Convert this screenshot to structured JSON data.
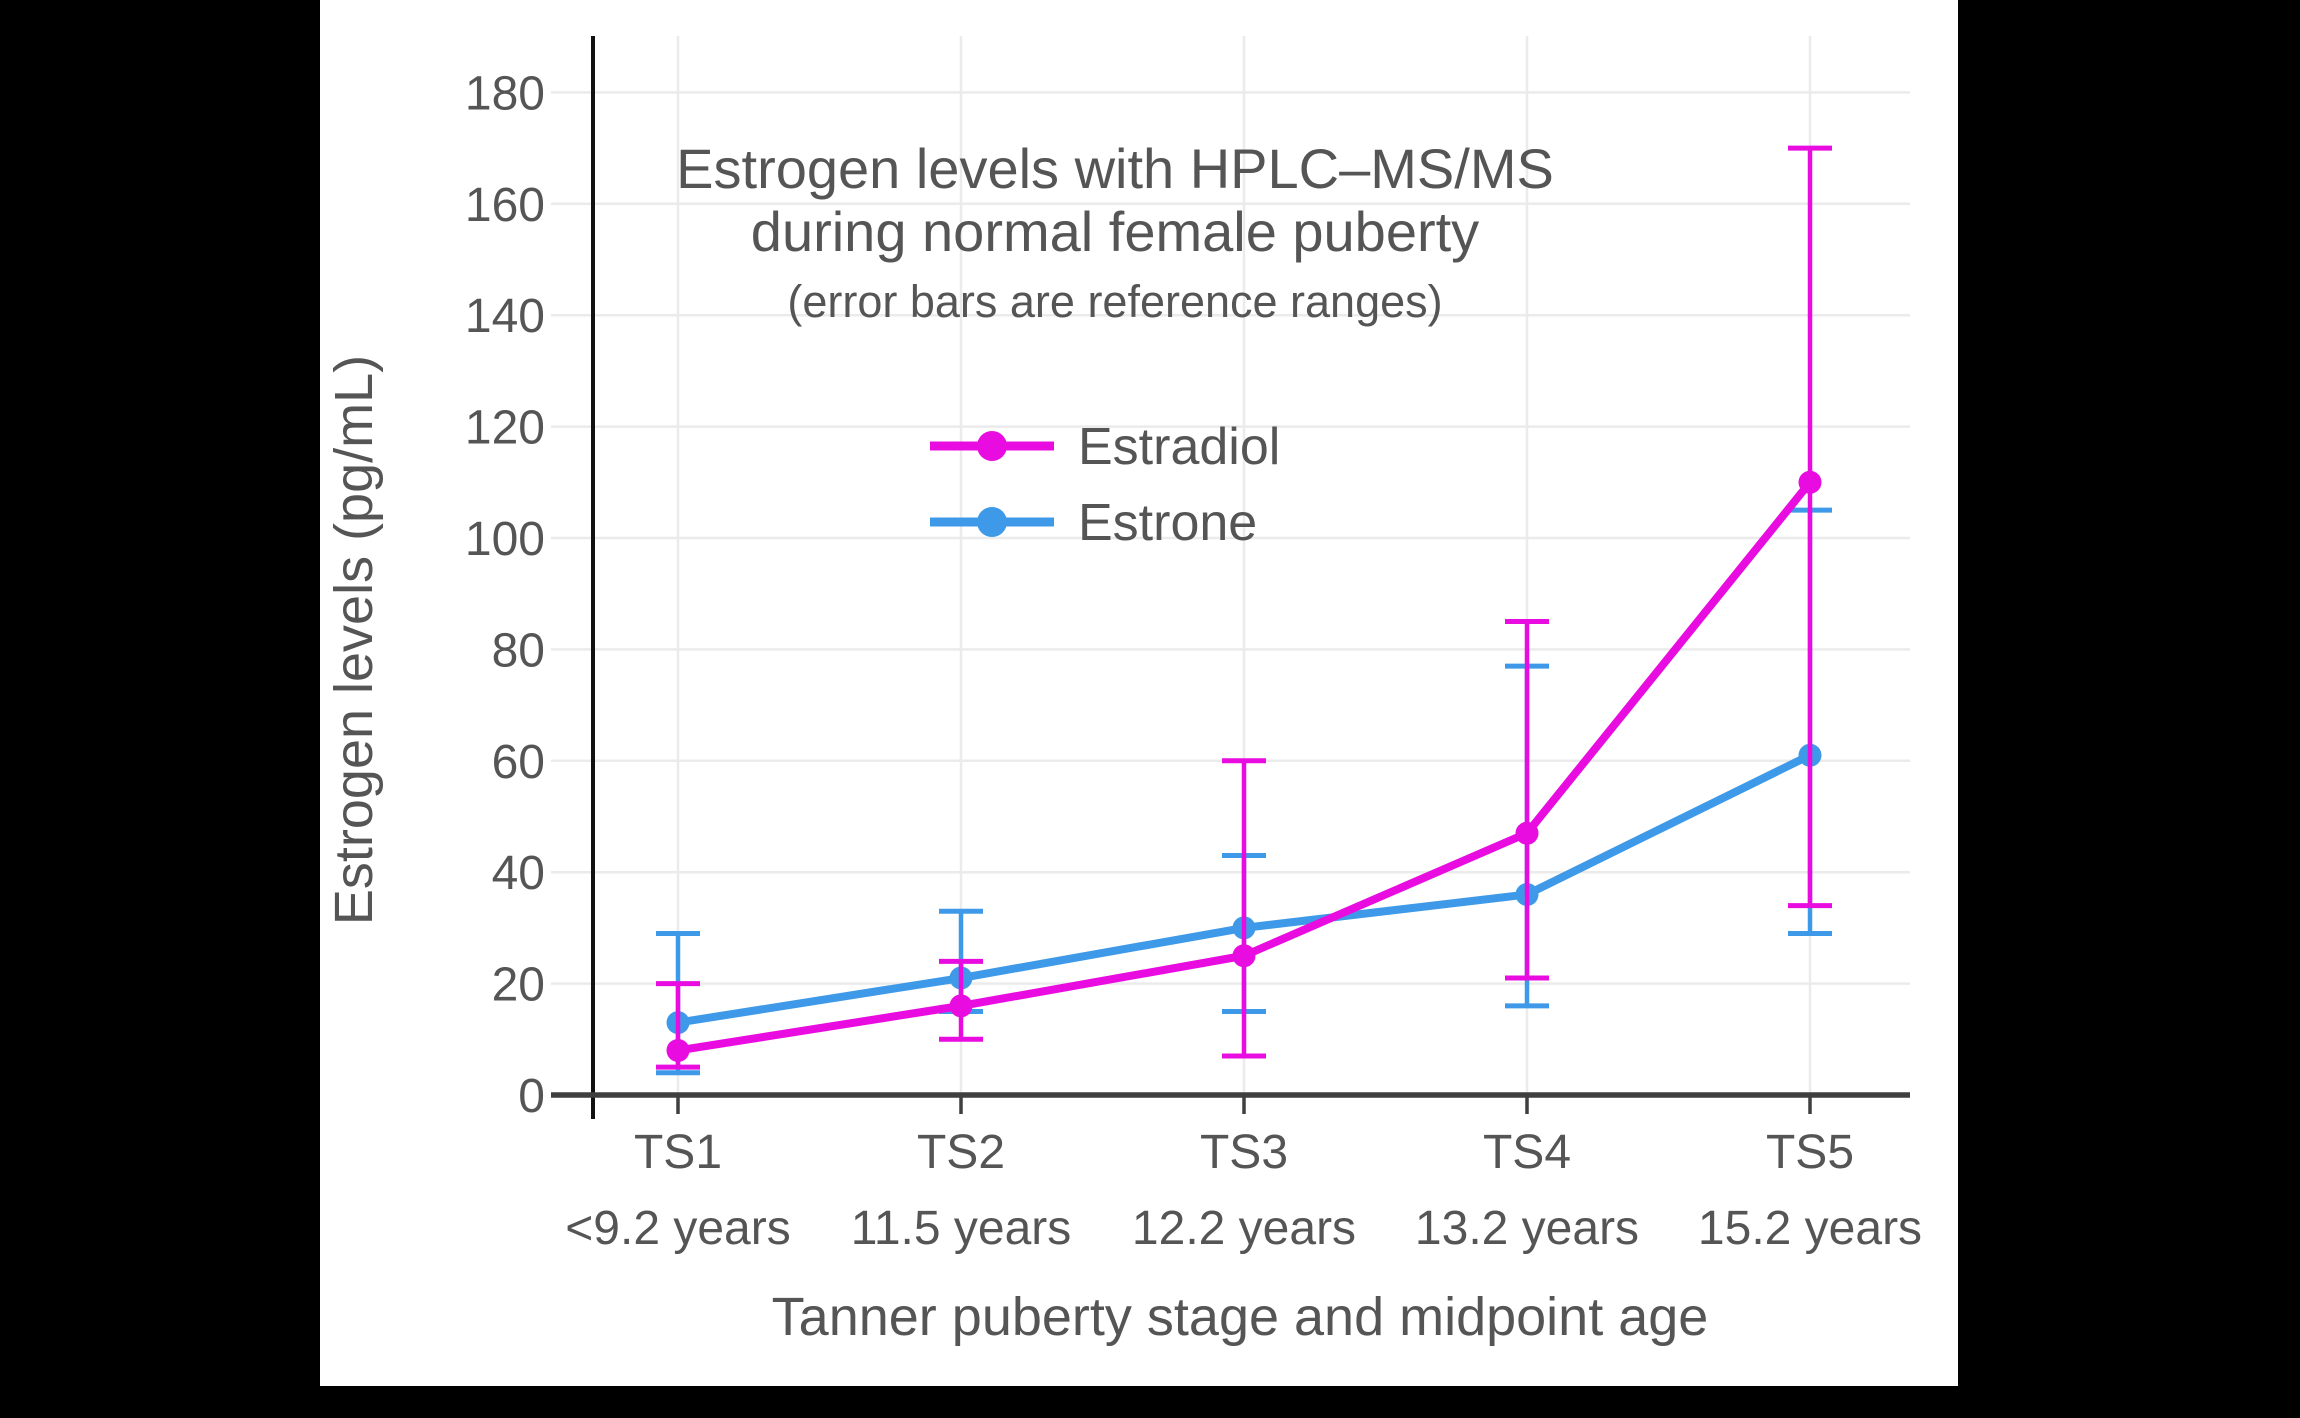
{
  "canvas": {
    "background": "#000000",
    "panel_color": "#ffffff",
    "text_color": "#555555",
    "axis_color": "#3F3F3F",
    "y_axis_line_color": "#111111",
    "grid_color": "#EBEBEB"
  },
  "chart_data": {
    "type": "line",
    "title_line1": "Estrogen levels with HPLC–MS/MS",
    "title_line2": "during normal female puberty",
    "subtitle": "(error bars are reference ranges)",
    "xlabel": "Tanner puberty stage and midpoint age",
    "ylabel": "Estrogen levels (pg/mL)",
    "categories": [
      "TS1",
      "TS2",
      "TS3",
      "TS4",
      "TS5"
    ],
    "category_sublabels": [
      "<9.2 years",
      "11.5 years",
      "12.2 years",
      "13.2 years",
      "15.2 years"
    ],
    "y_axis": {
      "min": 0,
      "max": 180,
      "tick_step": 20,
      "tick_labels": [
        "0",
        "20",
        "40",
        "60",
        "80",
        "100",
        "120",
        "140",
        "160",
        "180"
      ]
    },
    "grid": true,
    "legend_position": "upper-center-inside",
    "error_bar_meaning": "reference ranges",
    "series": [
      {
        "name": "Estradiol",
        "color": "#E90CE0",
        "values": [
          8,
          16,
          25,
          47,
          110
        ],
        "err_low": [
          5,
          10,
          7,
          21,
          34
        ],
        "err_high": [
          20,
          24,
          60,
          85,
          170
        ]
      },
      {
        "name": "Estrone",
        "color": "#3E9AE8",
        "values": [
          13,
          21,
          30,
          36,
          61
        ],
        "err_low": [
          4,
          15,
          15,
          16,
          29
        ],
        "err_high": [
          29,
          33,
          43,
          77,
          105
        ]
      }
    ]
  }
}
